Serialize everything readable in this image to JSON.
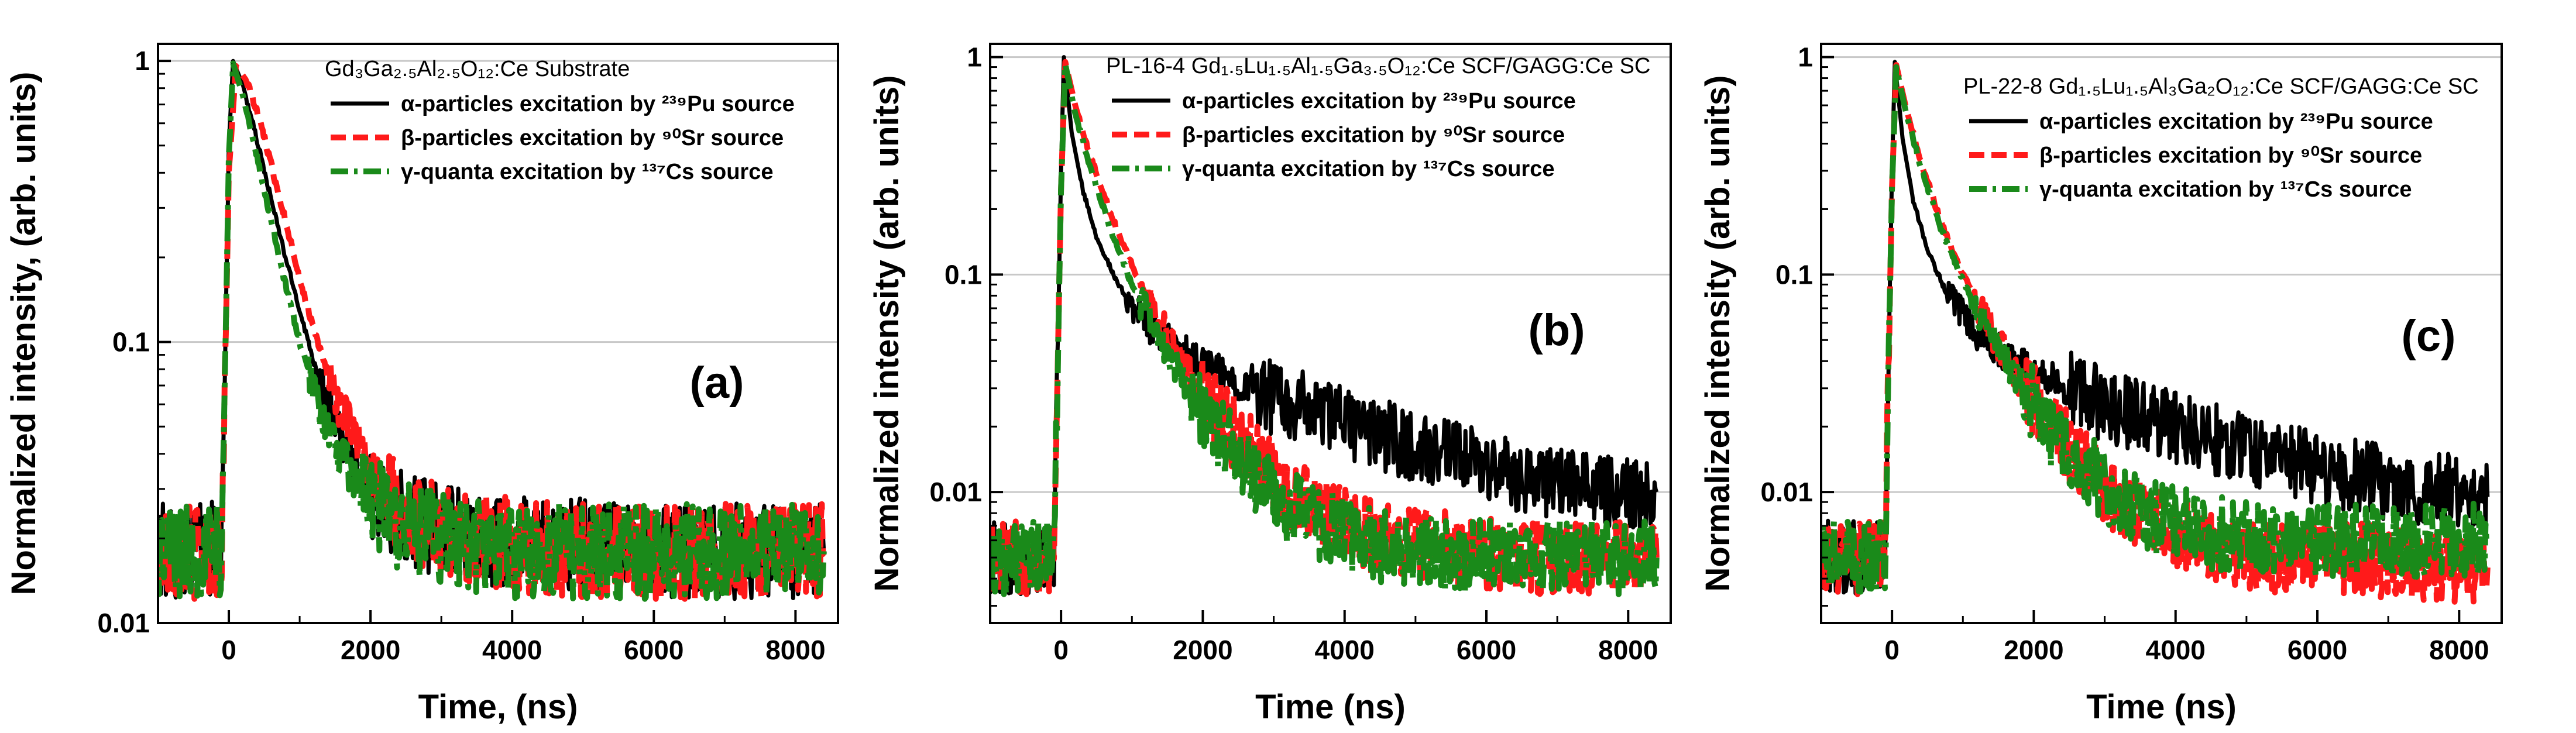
{
  "colors": {
    "alpha": "#000000",
    "beta": "#ff1a1a",
    "gamma": "#1a8a1a",
    "grid": "#c8c8c8"
  },
  "chart_data": [
    {
      "type": "line",
      "panel_label": "(a)",
      "title": "Gd₃Ga₂.₅Al₂.₅O₁₂:Ce Substrate",
      "xlabel": "Time, (ns)",
      "ylabel": "Normalized intensity, (arb. units)",
      "xlim": [
        -1000,
        8600
      ],
      "ylim": [
        0.01,
        1.15
      ],
      "yscale": "log",
      "x_ticks": [
        0,
        2000,
        4000,
        6000,
        8000
      ],
      "x_tick_labels": [
        "0",
        "2000",
        "4000",
        "6000",
        "8000"
      ],
      "y_ticks": [
        0.01,
        0.1,
        1
      ],
      "y_tick_labels": [
        "0.01",
        "0.1",
        "1"
      ],
      "grid": "horizontal",
      "legend_position": "top-right",
      "series": [
        {
          "name": "α-particles excitation by ²³⁹Pu source",
          "style": "solid",
          "color_key": "alpha",
          "x": [
            -1000,
            -500,
            -100,
            0,
            60,
            200,
            400,
            600,
            800,
            1000,
            1200,
            1500,
            2000,
            2500,
            3000,
            4000,
            5000,
            6000,
            7000,
            8400
          ],
          "y": [
            0.018,
            0.018,
            0.019,
            0.5,
            1.0,
            0.82,
            0.52,
            0.32,
            0.2,
            0.13,
            0.085,
            0.05,
            0.03,
            0.024,
            0.021,
            0.019,
            0.019,
            0.018,
            0.018,
            0.018
          ]
        },
        {
          "name": "β-particles excitation by ⁹⁰Sr source",
          "style": "dash",
          "color_key": "beta",
          "x": [
            -1000,
            -500,
            -100,
            0,
            100,
            250,
            450,
            650,
            850,
            1050,
            1250,
            1550,
            2000,
            2500,
            3000,
            4000,
            5000,
            6000,
            7000,
            8400
          ],
          "y": [
            0.018,
            0.018,
            0.018,
            0.4,
            0.96,
            0.85,
            0.6,
            0.38,
            0.24,
            0.15,
            0.1,
            0.06,
            0.034,
            0.025,
            0.021,
            0.019,
            0.018,
            0.018,
            0.018,
            0.018
          ]
        },
        {
          "name": "γ-quanta excitation by ¹³⁷Cs source",
          "style": "dashdot",
          "color_key": "gamma",
          "x": [
            -1000,
            -500,
            -100,
            0,
            60,
            200,
            400,
            600,
            800,
            1000,
            1200,
            1500,
            2000,
            2500,
            3000,
            4000,
            5000,
            6000,
            7000,
            8400
          ],
          "y": [
            0.018,
            0.018,
            0.018,
            0.45,
            0.98,
            0.75,
            0.45,
            0.27,
            0.16,
            0.1,
            0.068,
            0.042,
            0.027,
            0.022,
            0.02,
            0.018,
            0.018,
            0.018,
            0.018,
            0.018
          ]
        }
      ]
    },
    {
      "type": "line",
      "panel_label": "(b)",
      "title": "PL-16-4 Gd₁.₅Lu₁.₅Al₁.₅Ga₃.₅O₁₂:Ce SCF/GAGG:Ce SC",
      "xlabel": "Time (ns)",
      "ylabel": "Normalized intensity (arb. units)",
      "xlim": [
        -1000,
        8600
      ],
      "ylim": [
        0.0025,
        1.15
      ],
      "yscale": "log",
      "x_ticks": [
        0,
        2000,
        4000,
        6000,
        8000
      ],
      "x_tick_labels": [
        "0",
        "2000",
        "4000",
        "6000",
        "8000"
      ],
      "y_ticks": [
        0.01,
        0.1,
        1
      ],
      "y_tick_labels": [
        "0.01",
        "0.1",
        "1"
      ],
      "grid": "horizontal",
      "legend_position": "top-right",
      "series": [
        {
          "name": "α-particles excitation by ²³⁹Pu source",
          "style": "solid",
          "color_key": "alpha",
          "x": [
            -1000,
            -500,
            -100,
            0,
            40,
            150,
            300,
            500,
            800,
            1200,
            1600,
            2000,
            2500,
            3000,
            4000,
            5000,
            6000,
            7000,
            8000,
            8400
          ],
          "y": [
            0.005,
            0.005,
            0.005,
            0.3,
            1.0,
            0.45,
            0.25,
            0.15,
            0.09,
            0.06,
            0.047,
            0.039,
            0.032,
            0.027,
            0.021,
            0.016,
            0.013,
            0.011,
            0.01,
            0.01
          ]
        },
        {
          "name": "β-particles excitation by ⁹⁰Sr source",
          "style": "dash",
          "color_key": "beta",
          "x": [
            -1000,
            -500,
            -100,
            0,
            60,
            200,
            400,
            700,
            1000,
            1400,
            1800,
            2200,
            2700,
            3200,
            3800,
            4500,
            5500,
            6500,
            7500,
            8400
          ],
          "y": [
            0.005,
            0.005,
            0.005,
            0.25,
            0.95,
            0.6,
            0.36,
            0.19,
            0.11,
            0.06,
            0.036,
            0.023,
            0.015,
            0.01,
            0.0075,
            0.006,
            0.0055,
            0.005,
            0.005,
            0.005
          ]
        },
        {
          "name": "γ-quanta excitation by ¹³⁷Cs source",
          "style": "dashdot",
          "color_key": "gamma",
          "x": [
            -1000,
            -500,
            -100,
            0,
            60,
            200,
            400,
            700,
            1000,
            1400,
            1800,
            2200,
            2700,
            3200,
            3800,
            4500,
            5500,
            6500,
            7500,
            8400
          ],
          "y": [
            0.005,
            0.005,
            0.005,
            0.25,
            0.93,
            0.55,
            0.32,
            0.16,
            0.09,
            0.05,
            0.03,
            0.019,
            0.012,
            0.0085,
            0.0068,
            0.0056,
            0.0052,
            0.005,
            0.005,
            0.005
          ]
        }
      ]
    },
    {
      "type": "line",
      "panel_label": "(c)",
      "title": "PL-22-8 Gd₁.₅Lu₁.₅Al₃Ga₂O₁₂:Ce SCF/GAGG:Ce SC",
      "xlabel": "Time (ns)",
      "ylabel": "Normalized intensity (arb. units)",
      "xlim": [
        -1000,
        8600
      ],
      "ylim": [
        0.0025,
        1.15
      ],
      "yscale": "log",
      "x_ticks": [
        0,
        2000,
        4000,
        6000,
        8000
      ],
      "x_tick_labels": [
        "0",
        "2000",
        "4000",
        "6000",
        "8000"
      ],
      "y_ticks": [
        0.01,
        0.1,
        1
      ],
      "y_tick_labels": [
        "0.01",
        "0.1",
        "1"
      ],
      "grid": "horizontal",
      "legend_position": "top-right",
      "series": [
        {
          "name": "α-particles excitation by ²³⁹Pu source",
          "style": "solid",
          "color_key": "alpha",
          "x": [
            -1000,
            -500,
            -100,
            0,
            40,
            150,
            300,
            500,
            800,
            1200,
            1600,
            2000,
            2500,
            3000,
            4000,
            5000,
            6000,
            7000,
            8000,
            8400
          ],
          "y": [
            0.005,
            0.005,
            0.005,
            0.3,
            0.95,
            0.42,
            0.22,
            0.13,
            0.078,
            0.053,
            0.043,
            0.036,
            0.03,
            0.025,
            0.02,
            0.016,
            0.013,
            0.011,
            0.01,
            0.0095
          ]
        },
        {
          "name": "β-particles excitation by ⁹⁰Sr source",
          "style": "dash",
          "color_key": "beta",
          "x": [
            -1000,
            -500,
            -100,
            0,
            60,
            200,
            400,
            700,
            1000,
            1400,
            1800,
            2200,
            2700,
            3200,
            3800,
            4500,
            5500,
            6500,
            7500,
            8400
          ],
          "y": [
            0.005,
            0.005,
            0.005,
            0.25,
            0.92,
            0.58,
            0.34,
            0.17,
            0.1,
            0.055,
            0.033,
            0.021,
            0.013,
            0.009,
            0.007,
            0.0055,
            0.005,
            0.005,
            0.0045,
            0.0045
          ]
        },
        {
          "name": "γ-quanta excitation by ¹³⁷Cs source",
          "style": "dashdot",
          "color_key": "gamma",
          "x": [
            -1000,
            -500,
            -100,
            0,
            60,
            200,
            400,
            700,
            1000,
            1400,
            1800,
            2200,
            2700,
            3200,
            3800,
            4500,
            5500,
            6500,
            7500,
            8400
          ],
          "y": [
            0.005,
            0.005,
            0.005,
            0.25,
            0.9,
            0.55,
            0.32,
            0.16,
            0.094,
            0.053,
            0.032,
            0.02,
            0.013,
            0.0095,
            0.0075,
            0.0065,
            0.006,
            0.006,
            0.006,
            0.006
          ]
        }
      ]
    }
  ]
}
